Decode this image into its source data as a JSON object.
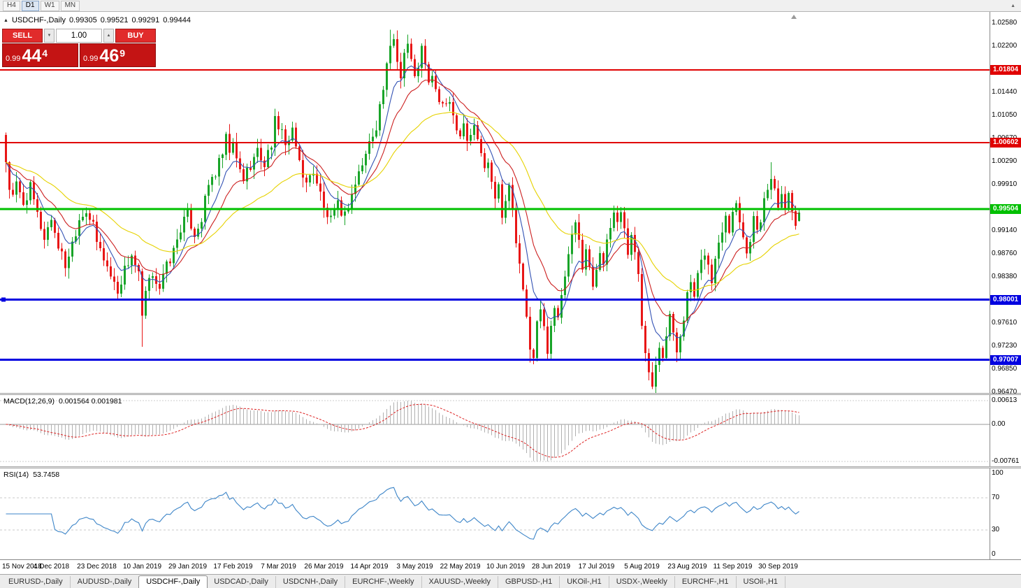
{
  "toolbar": {
    "timeframes": [
      {
        "label": "H4",
        "active": false
      },
      {
        "label": "D1",
        "active": true
      },
      {
        "label": "W1",
        "active": false
      },
      {
        "label": "MN",
        "active": false
      }
    ]
  },
  "ui": {
    "icons": {
      "one_click_toggle": "▲",
      "toolbar_expand": "▲",
      "volume_down": "▼",
      "volume_up": "▲"
    },
    "colors": {
      "up_candle": "#18a428",
      "down_candle": "#e81616",
      "macd_hist": "#b0b0b0",
      "macd_signal": "#dd2222",
      "rsi_line": "#3d85c8",
      "level_red": "#e00000",
      "level_green": "#00c000",
      "level_blue": "#0000e0"
    }
  },
  "chart": {
    "title": {
      "symbol_period": "USDCHF-,Daily",
      "open": "0.99305",
      "high": "0.99521",
      "low": "0.99291",
      "close": "0.99444"
    },
    "trade_widget": {
      "sell_label": "SELL",
      "buy_label": "BUY",
      "volume": "1.00",
      "sell_price": {
        "prefix": "0.99",
        "big": "44",
        "sup": "4"
      },
      "buy_price": {
        "prefix": "0.99",
        "big": "46",
        "sup": "9"
      }
    }
  },
  "chart_data": {
    "type": "candlestick",
    "symbol": "USDCHF-",
    "timeframe": "Daily",
    "last_ohlc": {
      "open": 0.99305,
      "high": 0.99521,
      "low": 0.99291,
      "close": 0.99444
    },
    "bar_count": 228,
    "y_axis": {
      "top": 1.0258,
      "bottom": 0.9647,
      "ticks": [
        "1.02580",
        "1.02200",
        "1.01440",
        "1.01050",
        "1.00670",
        "1.00290",
        "0.99910",
        "0.99140",
        "0.98760",
        "0.98380",
        "0.97610",
        "0.97230",
        "0.96850",
        "0.96470"
      ]
    },
    "x_labels": [
      "15 Nov 2018",
      "4 Dec 2018",
      "23 Dec 2018",
      "10 Jan 2019",
      "29 Jan 2019",
      "17 Feb 2019",
      "7 Mar 2019",
      "26 Mar 2019",
      "14 Apr 2019",
      "3 May 2019",
      "22 May 2019",
      "10 Jun 2019",
      "28 Jun 2019",
      "17 Jul 2019",
      "5 Aug 2019",
      "23 Aug 2019",
      "11 Sep 2019",
      "30 Sep 2019"
    ],
    "label_indices": [
      0,
      13,
      26,
      39,
      52,
      65,
      78,
      91,
      104,
      117,
      130,
      143,
      156,
      169,
      182,
      195,
      208,
      221
    ],
    "levels": [
      {
        "value": 1.01804,
        "label": "1.01804",
        "color": "#e00000",
        "width": 2,
        "handle": false
      },
      {
        "value": 1.00602,
        "label": "1.00602",
        "color": "#e00000",
        "width": 2,
        "handle": false
      },
      {
        "value": 0.99504,
        "label": "0.99504",
        "color": "#00c000",
        "width": 3,
        "handle": false
      },
      {
        "value": 0.98001,
        "label": "0.98001",
        "color": "#0000e0",
        "width": 3,
        "handle": true
      },
      {
        "value": 0.97007,
        "label": "0.97007",
        "color": "#0000e0",
        "width": 3,
        "handle": false
      }
    ],
    "moving_averages": [
      {
        "name": "fast-ma",
        "period": 8,
        "color": "#3352b4"
      },
      {
        "name": "mid-ma",
        "period": 16,
        "color": "#cc2020"
      },
      {
        "name": "slow-ma",
        "period": 40,
        "color": "#e6d200"
      }
    ],
    "close_anchors": [
      [
        0,
        1.003
      ],
      [
        1,
        0.9985
      ],
      [
        2,
        0.9968
      ],
      [
        3,
        0.999
      ],
      [
        5,
        0.996
      ],
      [
        7,
        0.9985
      ],
      [
        9,
        0.994
      ],
      [
        11,
        0.9903
      ],
      [
        13,
        0.9935
      ],
      [
        15,
        0.989
      ],
      [
        17,
        0.9857
      ],
      [
        19,
        0.9895
      ],
      [
        21,
        0.9935
      ],
      [
        23,
        0.995
      ],
      [
        25,
        0.992
      ],
      [
        26,
        0.9895
      ],
      [
        28,
        0.987
      ],
      [
        30,
        0.984
      ],
      [
        32,
        0.9815
      ],
      [
        34,
        0.985
      ],
      [
        36,
        0.9875
      ],
      [
        38,
        0.984
      ],
      [
        39,
        0.9768
      ],
      [
        40,
        0.981
      ],
      [
        42,
        0.9845
      ],
      [
        44,
        0.982
      ],
      [
        46,
        0.9855
      ],
      [
        48,
        0.988
      ],
      [
        50,
        0.992
      ],
      [
        52,
        0.994
      ],
      [
        54,
        0.991
      ],
      [
        56,
        0.9935
      ],
      [
        58,
        0.999
      ],
      [
        60,
        1.001
      ],
      [
        62,
        1.004
      ],
      [
        63,
        1.0065
      ],
      [
        64,
        1.0045
      ],
      [
        65,
        1.0055
      ],
      [
        66,
        1.003
      ],
      [
        68,
        1.0
      ],
      [
        70,
        1.0025
      ],
      [
        72,
        1.0045
      ],
      [
        74,
        1.0025
      ],
      [
        76,
        1.006
      ],
      [
        77,
        1.0095
      ],
      [
        78,
        1.0075
      ],
      [
        79,
        1.009
      ],
      [
        80,
        1.0055
      ],
      [
        82,
        1.0075
      ],
      [
        84,
        1.003
      ],
      [
        86,
        0.999
      ],
      [
        88,
        1.0015
      ],
      [
        90,
        0.9975
      ],
      [
        91,
        0.995
      ],
      [
        93,
        0.993
      ],
      [
        95,
        0.9955
      ],
      [
        97,
        0.994
      ],
      [
        99,
        0.9975
      ],
      [
        101,
        1.001
      ],
      [
        103,
        1.004
      ],
      [
        104,
        1.006
      ],
      [
        106,
        1.009
      ],
      [
        108,
        1.015
      ],
      [
        110,
        1.0215
      ],
      [
        111,
        1.0235
      ],
      [
        112,
        1.0195
      ],
      [
        113,
        1.0175
      ],
      [
        114,
        1.021
      ],
      [
        115,
        1.0225
      ],
      [
        116,
        1.0195
      ],
      [
        117,
        1.0165
      ],
      [
        118,
        1.019
      ],
      [
        119,
        1.0215
      ],
      [
        120,
        1.0185
      ],
      [
        121,
        1.0155
      ],
      [
        122,
        1.0175
      ],
      [
        123,
        1.0145
      ],
      [
        125,
        1.0115
      ],
      [
        127,
        1.0135
      ],
      [
        128,
        1.0105
      ],
      [
        130,
        1.0075
      ],
      [
        131,
        1.0095
      ],
      [
        132,
        1.0065
      ],
      [
        134,
        1.0085
      ],
      [
        136,
        1.0045
      ],
      [
        137,
        1.0015
      ],
      [
        138,
        1.0035
      ],
      [
        139,
        1.0
      ],
      [
        140,
        0.9975
      ],
      [
        141,
        0.999
      ],
      [
        142,
        0.9945
      ],
      [
        143,
        0.9965
      ],
      [
        144,
        0.9985
      ],
      [
        145,
        0.995
      ],
      [
        146,
        0.9895
      ],
      [
        147,
        0.9855
      ],
      [
        148,
        0.981
      ],
      [
        149,
        0.977
      ],
      [
        150,
        0.9725
      ],
      [
        151,
        0.97
      ],
      [
        152,
        0.976
      ],
      [
        153,
        0.9785
      ],
      [
        154,
        0.975
      ],
      [
        155,
        0.972
      ],
      [
        156,
        0.976
      ],
      [
        157,
        0.979
      ],
      [
        158,
        0.9765
      ],
      [
        159,
        0.98
      ],
      [
        160,
        0.984
      ],
      [
        161,
        0.987
      ],
      [
        162,
        0.99
      ],
      [
        163,
        0.9925
      ],
      [
        164,
        0.9895
      ],
      [
        165,
        0.986
      ],
      [
        166,
        0.9885
      ],
      [
        167,
        0.985
      ],
      [
        168,
        0.9825
      ],
      [
        169,
        0.9855
      ],
      [
        170,
        0.9885
      ],
      [
        171,
        0.986
      ],
      [
        172,
        0.989
      ],
      [
        173,
        0.992
      ],
      [
        174,
        0.9945
      ],
      [
        175,
        0.993
      ],
      [
        176,
        0.995
      ],
      [
        177,
        0.9915
      ],
      [
        178,
        0.988
      ],
      [
        179,
        0.991
      ],
      [
        180,
        0.9875
      ],
      [
        181,
        0.984
      ],
      [
        182,
        0.976
      ],
      [
        183,
        0.972
      ],
      [
        184,
        0.969
      ],
      [
        185,
        0.966
      ],
      [
        186,
        0.97
      ],
      [
        187,
        0.973
      ],
      [
        188,
        0.971
      ],
      [
        189,
        0.9745
      ],
      [
        190,
        0.9775
      ],
      [
        191,
        0.974
      ],
      [
        192,
        0.9715
      ],
      [
        193,
        0.9745
      ],
      [
        194,
        0.9775
      ],
      [
        195,
        0.9805
      ],
      [
        196,
        0.983
      ],
      [
        197,
        0.98
      ],
      [
        198,
        0.9835
      ],
      [
        199,
        0.986
      ],
      [
        200,
        0.988
      ],
      [
        201,
        0.9855
      ],
      [
        202,
        0.983
      ],
      [
        203,
        0.9865
      ],
      [
        204,
        0.9895
      ],
      [
        205,
        0.992
      ],
      [
        206,
        0.9945
      ],
      [
        207,
        0.992
      ],
      [
        208,
        0.9945
      ],
      [
        209,
        0.9965
      ],
      [
        210,
        0.9935
      ],
      [
        211,
        0.9905
      ],
      [
        212,
        0.9875
      ],
      [
        213,
        0.9905
      ],
      [
        214,
        0.9935
      ],
      [
        215,
        0.991
      ],
      [
        216,
        0.9935
      ],
      [
        217,
        0.996
      ],
      [
        218,
        0.9985
      ],
      [
        219,
        1.0005
      ],
      [
        220,
        0.9985
      ],
      [
        221,
        0.996
      ],
      [
        222,
        0.9985
      ],
      [
        223,
        0.9955
      ],
      [
        224,
        0.9975
      ],
      [
        225,
        0.995
      ],
      [
        226,
        0.993
      ],
      [
        227,
        0.99444
      ]
    ],
    "forced_wicks": {
      "0": {
        "high": 1.0077
      },
      "39": {
        "low": 0.9722
      },
      "110": {
        "high": 1.0247
      },
      "111": {
        "high": 1.024
      },
      "150": {
        "low": 0.9696
      },
      "151": {
        "low": 0.9693
      },
      "185": {
        "low": 0.9652
      },
      "219": {
        "high": 1.0028
      }
    },
    "macd": {
      "label": "MACD(12,26,9)",
      "values_text": "0.001564 0.001981",
      "fast": 12,
      "slow": 26,
      "signal": 9,
      "axis_ticks": [
        "0.00613",
        "0.00",
        "-0.00761"
      ]
    },
    "rsi": {
      "label": "RSI(14)",
      "value_text": "53.7458",
      "period": 14,
      "upper": 70,
      "lower": 30,
      "axis_ticks": [
        "100",
        "70",
        "30",
        "0"
      ]
    }
  },
  "tabs": [
    {
      "label": "EURUSD-,Daily",
      "active": false
    },
    {
      "label": "AUDUSD-,Daily",
      "active": false
    },
    {
      "label": "USDCHF-,Daily",
      "active": true
    },
    {
      "label": "USDCAD-,Daily",
      "active": false
    },
    {
      "label": "USDCNH-,Daily",
      "active": false
    },
    {
      "label": "EURCHF-,Weekly",
      "active": false
    },
    {
      "label": "XAUUSD-,Weekly",
      "active": false
    },
    {
      "label": "GBPUSD-,H1",
      "active": false
    },
    {
      "label": "UKOil-,H1",
      "active": false
    },
    {
      "label": "USDX-,Weekly",
      "active": false
    },
    {
      "label": "EURCHF-,H1",
      "active": false
    },
    {
      "label": "USOil-,H1",
      "active": false
    }
  ]
}
